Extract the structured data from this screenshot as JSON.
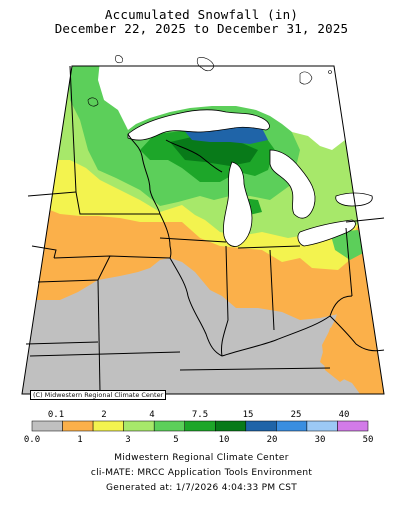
{
  "header": {
    "title": "Accumulated Snowfall (in)",
    "subtitle": "December 22, 2025 to December 31, 2025"
  },
  "map": {
    "copyright": "(C) Midwestern Regional Climate Center",
    "colors": {
      "background": "#ffffff",
      "water": "#ffffff",
      "border": "#000000",
      "no_snow": "#c0c0c0",
      "light": "#fbb04a",
      "yellow": "#f3f34f",
      "light_green": "#a7e86a",
      "green": "#5ccf5a",
      "dark_green": "#1da629",
      "darkest_green": "#087a19",
      "teal_blue": "#1f64a8"
    }
  },
  "legend": {
    "top_labels": [
      "0.1",
      "2",
      "4",
      "7.5",
      "15",
      "25",
      "40"
    ],
    "bottom_labels": [
      "0.0",
      "1",
      "3",
      "5",
      "10",
      "20",
      "30",
      "50"
    ],
    "colors": [
      "#c0c0c0",
      "#fbb04a",
      "#f3f34f",
      "#a7e86a",
      "#5ccf5a",
      "#1da629",
      "#087a19",
      "#1f64a8",
      "#3a8ee0",
      "#9cc9f5",
      "#d27be8"
    ]
  },
  "footer": {
    "line1": "Midwestern Regional Climate Center",
    "line2": "cli-MATE: MRCC Application Tools Environment",
    "line3": "Generated at: 1/7/2026 4:04:33 PM CST"
  }
}
